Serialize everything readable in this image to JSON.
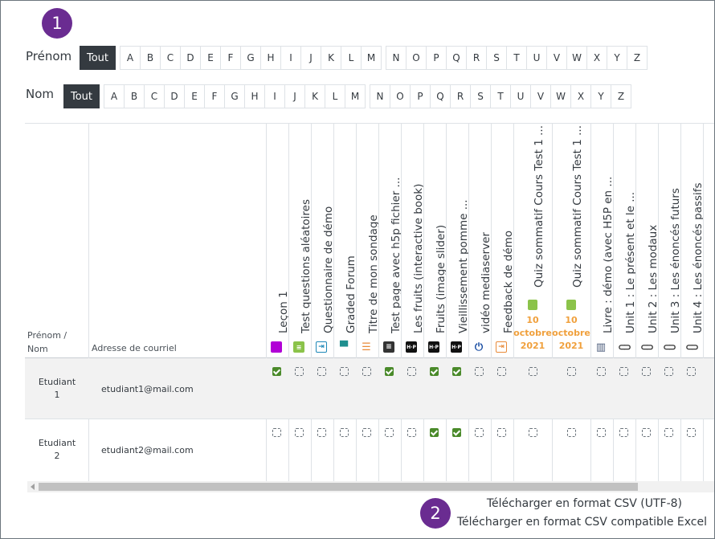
{
  "markers": {
    "one": "1",
    "two": "2"
  },
  "filters": {
    "first_name": {
      "label": "Prénom",
      "all_label": "Tout",
      "letters": [
        "A",
        "B",
        "C",
        "D",
        "E",
        "F",
        "G",
        "H",
        "I",
        "J",
        "K",
        "L",
        "M",
        "N",
        "O",
        "P",
        "Q",
        "R",
        "S",
        "T",
        "U",
        "V",
        "W",
        "X",
        "Y",
        "Z"
      ]
    },
    "last_name": {
      "label": "Nom",
      "all_label": "Tout",
      "letters": [
        "A",
        "B",
        "C",
        "D",
        "E",
        "F",
        "G",
        "H",
        "I",
        "J",
        "K",
        "L",
        "M",
        "N",
        "O",
        "P",
        "Q",
        "R",
        "S",
        "T",
        "U",
        "V",
        "W",
        "X",
        "Y",
        "Z"
      ]
    }
  },
  "table": {
    "header_name": "Prénom / Nom",
    "header_email": "Adresse de courriel",
    "columns": [
      {
        "label": "Leçon 1",
        "icon": "lesson-icon",
        "color": "#b100d6"
      },
      {
        "label": "Test questions aléatoires",
        "icon": "quiz-icon",
        "color": "#8bc34a"
      },
      {
        "label": "Questionnaire de démo",
        "icon": "feedback-enter-icon",
        "color": "#1e88b8"
      },
      {
        "label": "Graded Forum",
        "icon": "forum-icon",
        "color": "#1f8f8f"
      },
      {
        "label": "Titre de mon sondage",
        "icon": "survey-icon",
        "color": "#e98b3a"
      },
      {
        "label": "Test page avec h5p fichier ...",
        "icon": "page-icon",
        "color": "#333333"
      },
      {
        "label": "Les fruits (interactive book)",
        "icon": "h5p-icon",
        "color": "#111111"
      },
      {
        "label": "Fruits (image slider)",
        "icon": "h5p-icon",
        "color": "#111111"
      },
      {
        "label": "Vieillissement pomme ...",
        "icon": "h5p-icon",
        "color": "#111111"
      },
      {
        "label": "vidéo mediaserver",
        "icon": "mediaserver-icon",
        "color": "#1c4fa3"
      },
      {
        "label": "Feedback de démo",
        "icon": "feedback-icon",
        "color": "#e98b3a"
      }
    ],
    "quiz_columns": [
      {
        "label": "Quiz sommatif Cours Test 1 ...",
        "date_day": "10",
        "date_month": "octobre",
        "date_year": "2021"
      },
      {
        "label": "Quiz sommatif Cours Test 1 ...",
        "date_day": "10",
        "date_month": "octobre",
        "date_year": "2021"
      }
    ],
    "tail_columns": [
      {
        "label": "Livre : démo (avec H5P en ...",
        "icon": "book-icon"
      },
      {
        "label": "Unit 1 : Le présent et le ...",
        "icon": "link-icon"
      },
      {
        "label": "Unit 2 : Les modaux",
        "icon": "link-icon"
      },
      {
        "label": "Unit 3 : Les énoncés futurs",
        "icon": "link-icon"
      },
      {
        "label": "Unit 4 : Les énoncés passifs",
        "icon": "link-icon"
      }
    ],
    "rows": [
      {
        "name_line1": "Etudiant",
        "name_line2": "1",
        "email": "etudiant1@mail.com",
        "checks": [
          true,
          false,
          false,
          false,
          false,
          true,
          false,
          true,
          true,
          false,
          false,
          false,
          false,
          false,
          false,
          false,
          false,
          false
        ]
      },
      {
        "name_line1": "Etudiant",
        "name_line2": "2",
        "email": "etudiant2@mail.com",
        "checks": [
          false,
          false,
          false,
          false,
          false,
          false,
          false,
          true,
          true,
          false,
          false,
          false,
          false,
          false,
          false,
          false,
          false,
          false
        ]
      }
    ]
  },
  "downloads": {
    "csv_utf8": "Télécharger en format CSV (UTF-8)",
    "csv_excel": "Télécharger en format CSV compatible Excel"
  }
}
